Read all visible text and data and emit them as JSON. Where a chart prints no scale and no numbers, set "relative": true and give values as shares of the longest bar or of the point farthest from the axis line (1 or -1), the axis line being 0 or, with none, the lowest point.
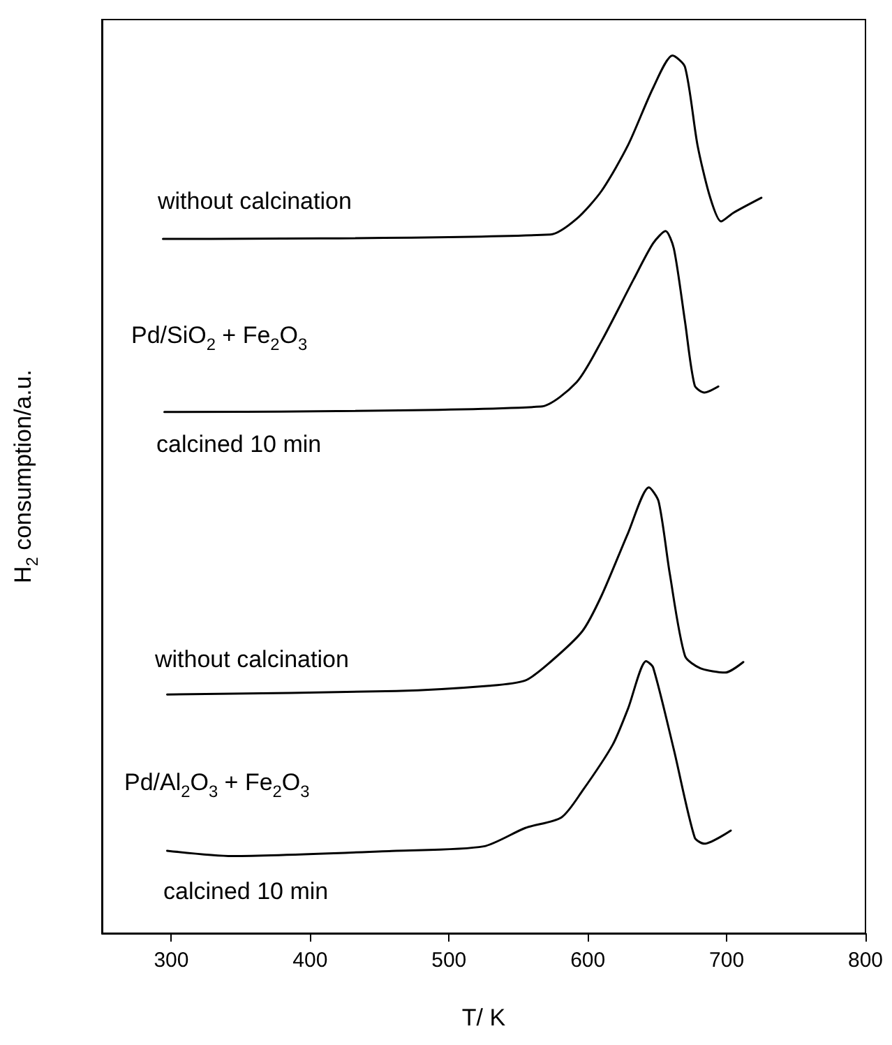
{
  "chart_data": {
    "type": "line",
    "relative": true,
    "xlabel": "T/ K",
    "ylabel": "H$_{2}$ consumption/a.u.",
    "xlim": [
      250,
      800
    ],
    "xticks": [
      300,
      400,
      500,
      600,
      700,
      800
    ],
    "marker": "none",
    "line_style": "solid",
    "series": [
      {
        "color": "#000000",
        "x": [
          294,
          573,
          592,
          610,
          629,
          647,
          661,
          670,
          679,
          688,
          696,
          705,
          725
        ],
        "values": [
          0.791,
          0.796,
          0.814,
          0.846,
          0.898,
          0.963,
          1,
          0.987,
          0.898,
          0.839,
          0.811,
          0.821,
          0.838
        ]
      },
      {
        "color": "#000000",
        "x": [
          295,
          566,
          592,
          610,
          633,
          647,
          656,
          662,
          670,
          677,
          684,
          694
        ],
        "values": [
          0.594,
          0.6,
          0.628,
          0.675,
          0.745,
          0.786,
          0.8,
          0.78,
          0.697,
          0.624,
          0.616,
          0.623
        ]
      },
      {
        "color": "#000000",
        "x": [
          297,
          462,
          529,
          555,
          573,
          596,
          610,
          629,
          644,
          651,
          659,
          670,
          681,
          699,
          712
        ],
        "values": [
          0.272,
          0.276,
          0.282,
          0.288,
          0.309,
          0.344,
          0.385,
          0.456,
          0.508,
          0.492,
          0.41,
          0.316,
          0.302,
          0.297,
          0.309
        ]
      },
      {
        "color": "#000000",
        "x": [
          297,
          344,
          462,
          525,
          555,
          581,
          596,
          618,
          629,
          642,
          647,
          662,
          677,
          684,
          703
        ],
        "values": [
          0.094,
          0.088,
          0.094,
          0.099,
          0.12,
          0.132,
          0.162,
          0.215,
          0.256,
          0.31,
          0.303,
          0.209,
          0.109,
          0.102,
          0.117
        ]
      }
    ],
    "annotations": [
      "without calcination",
      "Pd/SiO$_{2}$ + Fe$_{2}$O$_{3}$",
      "calcined 10 min",
      "without calcination",
      "Pd/Al$_{2}$O$_{3}$ + Fe$_{2}$O$_{3}$",
      "calcined 10 min"
    ]
  }
}
